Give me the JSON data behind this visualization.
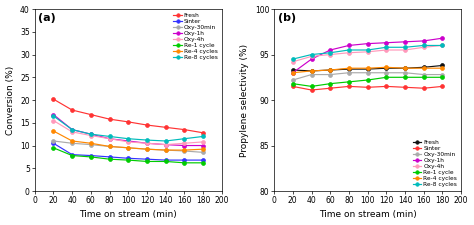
{
  "x": [
    20,
    40,
    60,
    80,
    100,
    120,
    140,
    160,
    180
  ],
  "panel_a": {
    "title": "(a)",
    "xlabel": "Time on stream (min)",
    "ylabel": "Conversion (%)",
    "ylim": [
      0,
      40
    ],
    "yticks": [
      0,
      5,
      10,
      15,
      20,
      25,
      30,
      35,
      40
    ],
    "xlim": [
      0,
      200
    ],
    "xticks": [
      0,
      20,
      40,
      60,
      80,
      100,
      120,
      140,
      160,
      180,
      200
    ],
    "series": {
      "Fresh": {
        "color": "#FF3333",
        "values": [
          20.2,
          17.8,
          16.8,
          15.8,
          15.2,
          14.5,
          14.0,
          13.5,
          12.8
        ]
      },
      "Sinter": {
        "color": "#3333FF",
        "values": [
          10.5,
          8.0,
          7.8,
          7.5,
          7.2,
          7.0,
          6.8,
          6.8,
          6.8
        ]
      },
      "Oxy-30min": {
        "color": "#AAAAAA",
        "values": [
          11.0,
          10.5,
          10.2,
          9.8,
          9.5,
          9.2,
          9.0,
          8.8,
          8.5
        ]
      },
      "Oxy-1h": {
        "color": "#CC00CC",
        "values": [
          16.8,
          13.5,
          12.5,
          11.5,
          11.0,
          10.5,
          10.2,
          10.0,
          10.0
        ]
      },
      "Oxy-4h": {
        "color": "#FF99BB",
        "values": [
          15.5,
          13.0,
          12.2,
          11.5,
          10.8,
          10.5,
          10.2,
          10.5,
          10.8
        ]
      },
      "Re-1 cycle": {
        "color": "#00CC00",
        "values": [
          9.5,
          7.8,
          7.5,
          7.0,
          6.8,
          6.5,
          6.5,
          6.2,
          6.2
        ]
      },
      "Re-4 cycles": {
        "color": "#FF8800",
        "values": [
          13.2,
          11.0,
          10.5,
          9.8,
          9.5,
          9.2,
          9.0,
          9.0,
          9.2
        ]
      },
      "Re-8 cycles": {
        "color": "#00BBBB",
        "values": [
          16.5,
          13.5,
          12.5,
          12.0,
          11.5,
          11.2,
          11.0,
          11.5,
          12.0
        ]
      }
    }
  },
  "panel_b": {
    "title": "(b)",
    "xlabel": "Time on stream (min)",
    "ylabel": "Propylene selectivity (%)",
    "ylim": [
      80,
      100
    ],
    "yticks": [
      80,
      85,
      90,
      95,
      100
    ],
    "xlim": [
      0,
      200
    ],
    "xticks": [
      0,
      20,
      40,
      60,
      80,
      100,
      120,
      140,
      160,
      180,
      200
    ],
    "series": {
      "Fresh": {
        "color": "#111111",
        "values": [
          93.3,
          93.2,
          93.3,
          93.4,
          93.4,
          93.5,
          93.5,
          93.6,
          93.8
        ]
      },
      "Sinter": {
        "color": "#FF3333",
        "values": [
          91.5,
          91.1,
          91.3,
          91.5,
          91.4,
          91.5,
          91.4,
          91.3,
          91.5
        ]
      },
      "Oxy-30min": {
        "color": "#AAAAAA",
        "values": [
          92.2,
          92.8,
          92.8,
          93.0,
          93.0,
          93.0,
          93.0,
          92.8,
          92.8
        ]
      },
      "Oxy-1h": {
        "color": "#CC00CC",
        "values": [
          93.0,
          94.5,
          95.5,
          96.0,
          96.2,
          96.3,
          96.4,
          96.5,
          96.8
        ]
      },
      "Oxy-4h": {
        "color": "#FF99BB",
        "values": [
          94.2,
          94.8,
          95.0,
          95.2,
          95.3,
          95.5,
          95.5,
          95.8,
          96.0
        ]
      },
      "Re-1 cycle": {
        "color": "#00CC00",
        "values": [
          91.8,
          91.5,
          91.8,
          92.0,
          92.2,
          92.5,
          92.5,
          92.5,
          92.5
        ]
      },
      "Re-4 cycles": {
        "color": "#FF8800",
        "values": [
          93.0,
          93.2,
          93.3,
          93.5,
          93.5,
          93.6,
          93.5,
          93.5,
          93.5
        ]
      },
      "Re-8 cycles": {
        "color": "#00BBBB",
        "values": [
          94.5,
          95.0,
          95.2,
          95.5,
          95.5,
          95.8,
          95.8,
          96.0,
          96.0
        ]
      }
    }
  }
}
